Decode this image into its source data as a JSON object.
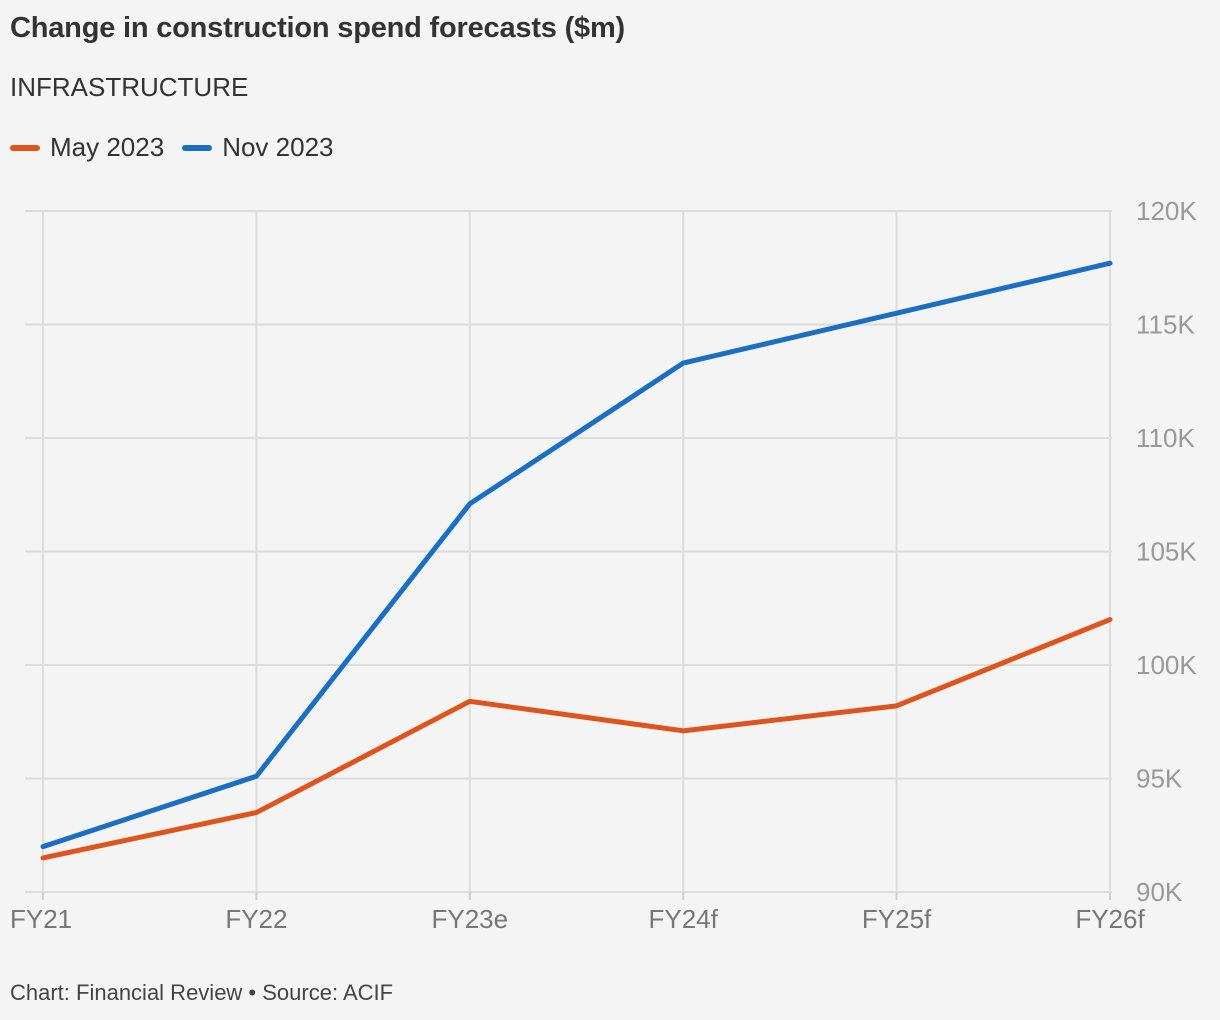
{
  "title": "Change in construction spend forecasts ($m)",
  "subtitle": "INFRASTRUCTURE",
  "footer": "Chart: Financial Review • Source: ACIF",
  "chart_data": {
    "type": "line",
    "categories": [
      "FY21",
      "FY22",
      "FY23e",
      "FY24f",
      "FY25f",
      "FY26f"
    ],
    "series": [
      {
        "name": "May 2023",
        "color": "#e0531c",
        "values": [
          91500,
          93500,
          98400,
          97100,
          98200,
          102000
        ]
      },
      {
        "name": "Nov 2023",
        "color": "#1a6fc4",
        "values": [
          92000,
          95100,
          107100,
          113300,
          115500,
          117700
        ]
      }
    ],
    "ylim": [
      90000,
      120000
    ],
    "yticks": [
      {
        "value": 120000,
        "label": "120K"
      },
      {
        "value": 115000,
        "label": "115K"
      },
      {
        "value": 110000,
        "label": "110K"
      },
      {
        "value": 105000,
        "label": "105K"
      },
      {
        "value": 100000,
        "label": "100K"
      },
      {
        "value": 95000,
        "label": "95K"
      },
      {
        "value": 90000,
        "label": "90K"
      }
    ],
    "grid": true,
    "legend_position": "top-left",
    "y_axis_side": "right"
  }
}
